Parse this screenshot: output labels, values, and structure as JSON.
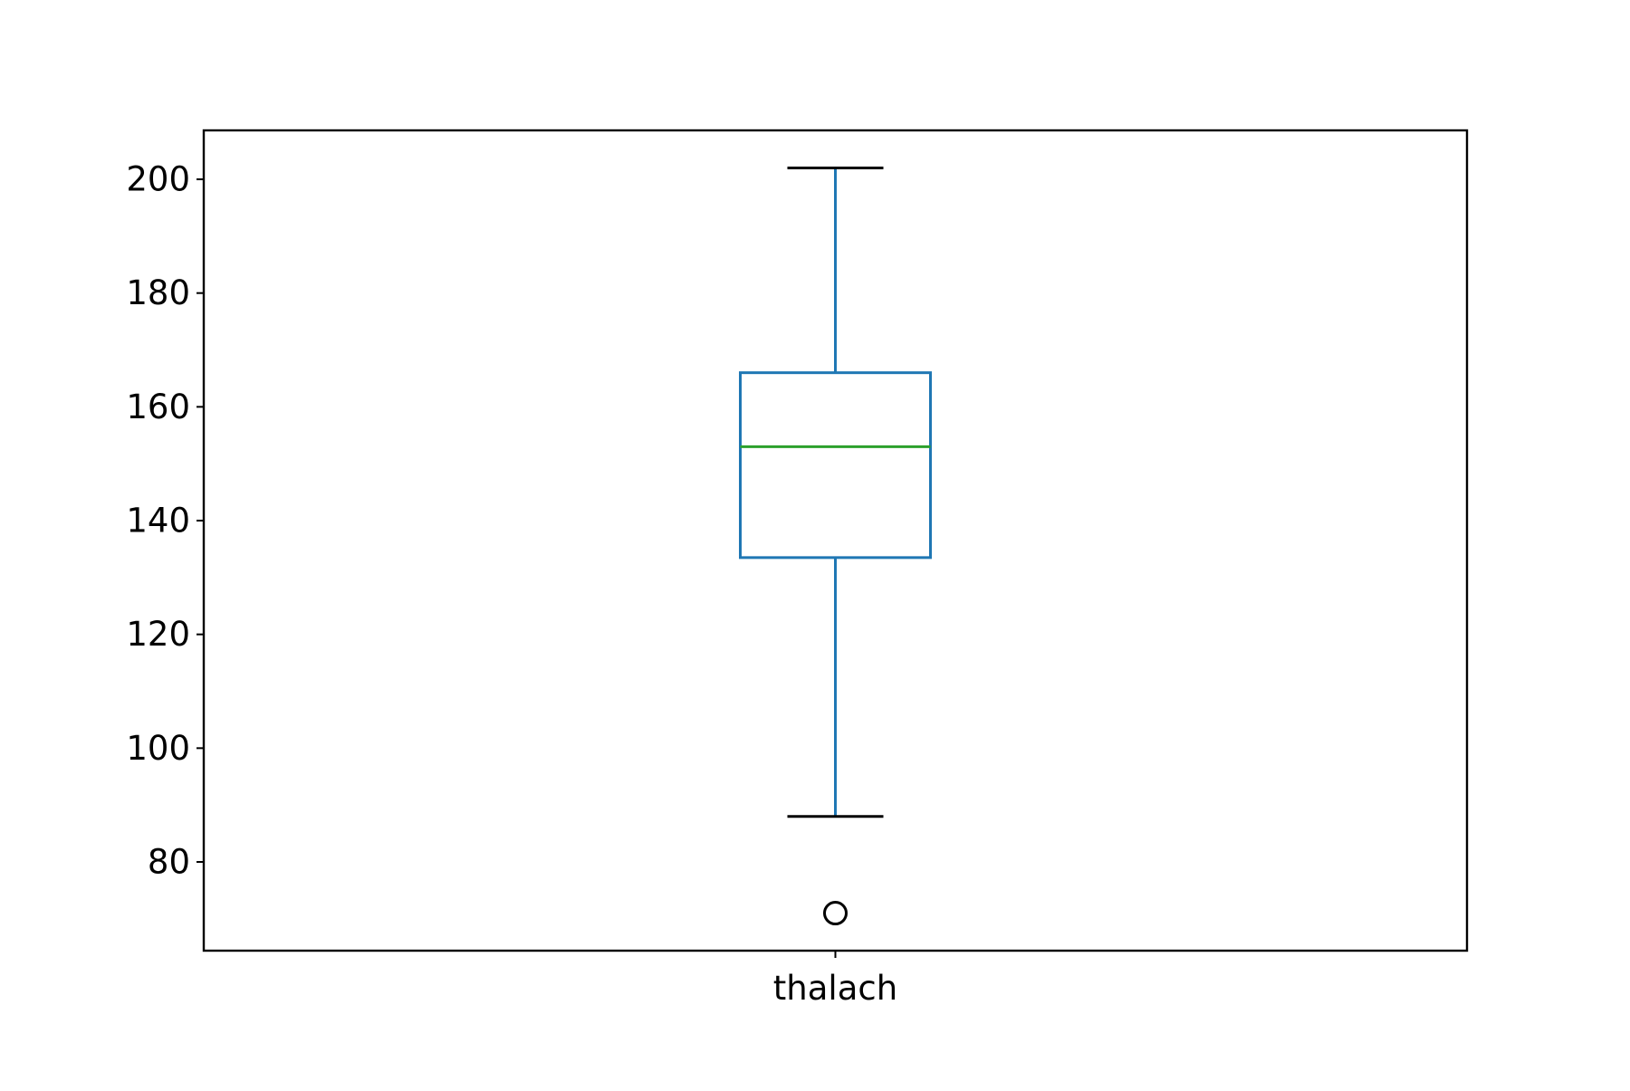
{
  "chart_data": {
    "type": "box",
    "categories": [
      "thalach"
    ],
    "boxes": [
      {
        "label": "thalach",
        "whisker_low": 88,
        "q1": 133.5,
        "median": 153,
        "q3": 166,
        "whisker_high": 202,
        "outliers": [
          71
        ]
      }
    ],
    "yticks": [
      80,
      100,
      120,
      140,
      160,
      180,
      200
    ],
    "ylim": [
      64.4,
      208.6
    ],
    "title": "",
    "xlabel": "",
    "ylabel": "",
    "grid": false,
    "colors": {
      "box": "#1f77b4",
      "median": "#2ca02c",
      "whisker_cap": "#000000",
      "outlier": "#000000",
      "axes": "#000000"
    }
  }
}
